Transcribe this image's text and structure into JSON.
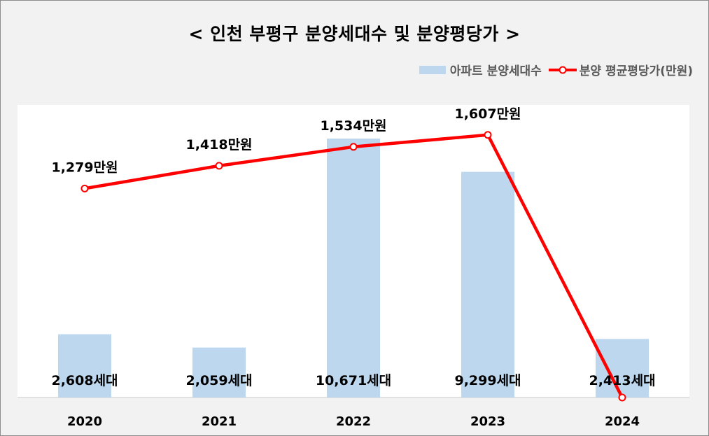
{
  "chart_data": {
    "type": "bar+line",
    "title": "< 인천 부평구 분양세대수 및 분양평당가 >",
    "categories": [
      "2020",
      "2021",
      "2022",
      "2023",
      "2024"
    ],
    "series": [
      {
        "name": "아파트 분양세대수",
        "type": "bar",
        "values": [
          2608,
          2059,
          10671,
          9299,
          2413
        ],
        "labels": [
          "2,608세대",
          "2,059세대",
          "10,671세대",
          "9,299세대",
          "2,413세대"
        ],
        "color": "#bdd7ee"
      },
      {
        "name": "분양 평균평당가(만원)",
        "type": "line",
        "values": [
          1279,
          1418,
          1534,
          1607,
          0
        ],
        "labels": [
          "1,279만원",
          "1,418만원",
          "1,534만원",
          "1,607만원",
          ""
        ],
        "color": "#ff0000"
      }
    ],
    "legend": "top-right",
    "grid": false
  }
}
